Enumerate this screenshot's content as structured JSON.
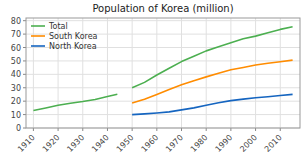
{
  "chart_data": {
    "type": "line",
    "title": "Population of Korea (million)",
    "series": [
      {
        "name": "Total",
        "color": "#4caf50",
        "x": [
          1910,
          1915,
          1920,
          1925,
          1930,
          1935,
          1940,
          1944,
          null,
          1950,
          1955,
          1960,
          1965,
          1970,
          1975,
          1980,
          1985,
          1990,
          1995,
          2000,
          2005,
          2010,
          2015
        ],
        "values": [
          13.1,
          14.9,
          16.9,
          18.5,
          19.7,
          21.3,
          23.5,
          25.1,
          null,
          30.0,
          34.0,
          39.5,
          44.5,
          49.5,
          53.5,
          57.5,
          60.5,
          63.5,
          66.5,
          68.5,
          71.0,
          73.5,
          75.5
        ]
      },
      {
        "name": "South Korea",
        "color": "#ff8c00",
        "x": [
          1950,
          1955,
          1960,
          1965,
          1970,
          1975,
          1980,
          1985,
          1990,
          1995,
          2000,
          2005,
          2010,
          2015
        ],
        "values": [
          18.7,
          21.5,
          25.0,
          28.7,
          32.2,
          35.3,
          38.1,
          40.8,
          43.4,
          45.1,
          47.0,
          48.3,
          49.4,
          50.6
        ]
      },
      {
        "name": "North Korea",
        "color": "#1565c0",
        "x": [
          1950,
          1955,
          1960,
          1965,
          1970,
          1975,
          1980,
          1985,
          1990,
          1995,
          2000,
          2005,
          2010,
          2015
        ],
        "values": [
          10.0,
          10.5,
          11.2,
          12.0,
          13.5,
          15.0,
          17.0,
          18.8,
          20.4,
          21.5,
          22.5,
          23.3,
          24.2,
          25.1
        ]
      }
    ],
    "xlim": [
      1907,
      2018
    ],
    "ylim": [
      0,
      82
    ],
    "xticks": [
      1910,
      1920,
      1930,
      1940,
      1950,
      1960,
      1970,
      1980,
      1990,
      2000,
      2010
    ],
    "yticks": [
      0,
      10,
      20,
      30,
      40,
      50,
      60,
      70,
      80
    ],
    "grid": true,
    "legend": "upper-left"
  }
}
